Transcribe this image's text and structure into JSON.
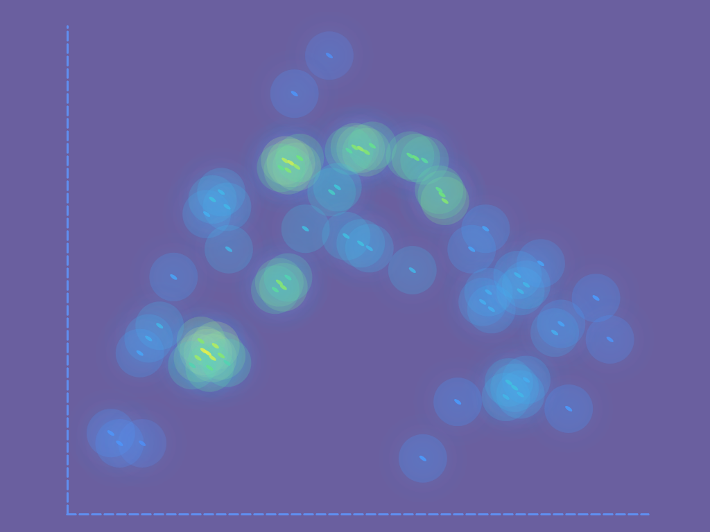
{
  "chart_data": {
    "type": "scatter",
    "x": [
      37.5,
      38.5,
      39.5,
      38,
      40,
      36.8,
      49.5,
      50.5,
      51.5,
      52.5,
      48.5,
      59,
      60,
      61.5,
      64.5,
      65,
      64,
      23.5,
      24.2,
      25,
      22.5,
      25.5,
      26.5,
      23,
      21.5,
      24.5,
      27.5,
      36.5,
      37.2,
      35.8,
      38,
      25,
      26.5,
      27.5,
      24,
      45.5,
      46.5,
      48,
      50.5,
      52,
      59.4,
      41,
      71.5,
      73,
      72.5,
      78,
      79,
      77.5,
      83.9,
      85,
      76,
      77,
      78,
      75.5,
      79,
      91,
      93.4,
      7.5,
      9,
      12.9,
      61.2,
      45.1,
      39.1,
      18.3,
      15.9,
      14,
      12.5,
      27.8,
      72,
      69.6,
      86.3,
      67.2,
      81.5
    ],
    "y": [
      72.5,
      72,
      71.2,
      70.5,
      73,
      71,
      75.2,
      74.9,
      74.2,
      75.5,
      74.5,
      73.5,
      73,
      72.5,
      65.5,
      64.2,
      66.5,
      33.5,
      33,
      32,
      32,
      34.5,
      32.5,
      35.5,
      30.5,
      30,
      31,
      47.5,
      46.5,
      46,
      48.5,
      64.5,
      66,
      63,
      61.5,
      66,
      67,
      57,
      55.5,
      54.5,
      50,
      58.5,
      43.5,
      42,
      45.5,
      45.7,
      47,
      49,
      37.2,
      39,
      27,
      25.9,
      24.5,
      24,
      27.5,
      44.3,
      35.8,
      16.6,
      14.5,
      14.5,
      11.4,
      94,
      86.2,
      48.6,
      38.6,
      36,
      33,
      54.3,
      58.5,
      54.3,
      21.6,
      23,
      51.4
    ],
    "intensity": [
      0.9,
      0.95,
      0.85,
      0.8,
      0.75,
      0.7,
      0.8,
      0.85,
      0.8,
      0.7,
      0.65,
      0.7,
      0.75,
      0.65,
      0.75,
      0.8,
      0.7,
      1,
      1,
      0.95,
      0.85,
      0.9,
      0.8,
      0.8,
      0.6,
      0.7,
      0.6,
      0.8,
      0.8,
      0.65,
      0.6,
      0.45,
      0.4,
      0.4,
      0.35,
      0.55,
      0.5,
      0.45,
      0.45,
      0.4,
      0.4,
      0.45,
      0.35,
      0.35,
      0.35,
      0.4,
      0.4,
      0.38,
      0.35,
      0.3,
      0.45,
      0.45,
      0.4,
      0.4,
      0.35,
      0.25,
      0.2,
      0.2,
      0.2,
      0.15,
      0.25,
      0.15,
      0.2,
      0.3,
      0.4,
      0.35,
      0.3,
      0.4,
      0.3,
      0.3,
      0.25,
      0.25,
      0.3
    ],
    "intensity_range": [
      0,
      1
    ],
    "xlim": [
      0,
      100
    ],
    "ylim": [
      0,
      100
    ],
    "tick_labels": false,
    "grid": false
  }
}
